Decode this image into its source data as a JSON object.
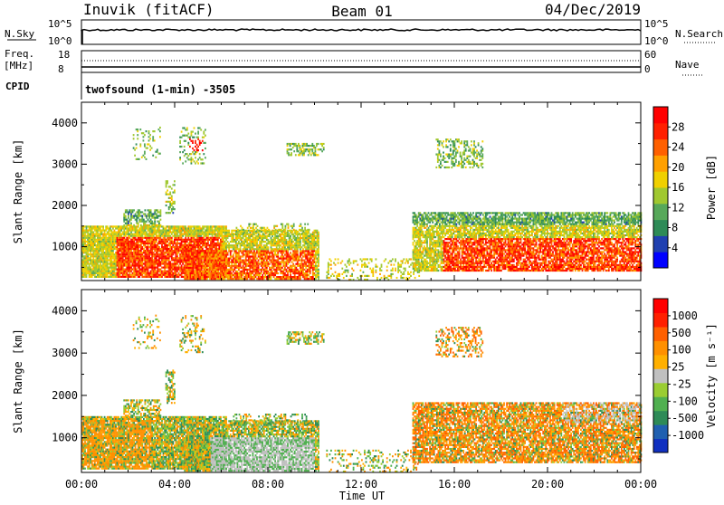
{
  "header": {
    "station": "Inuvik (fitACF)",
    "beam": "Beam 01",
    "date": "04/Dec/2019"
  },
  "top_panels": {
    "nsky_label": "N.Sky",
    "nsky_ticks": [
      "10^5",
      "10^0"
    ],
    "nsearch_label": "N.Search",
    "nsearch_ticks": [
      "10^5",
      "10^0"
    ],
    "freq_label_1": "Freq.",
    "freq_label_2": "[MHz]",
    "freq_ticks": [
      "18",
      "8"
    ],
    "nave_label": "Nave",
    "nave_ticks": [
      "60",
      "0"
    ],
    "cpid_label": "CPID",
    "cpid_text": "twofsound (1-min) -3505"
  },
  "chart_data": [
    {
      "type": "heatmap",
      "name": "power",
      "ylabel": "Slant Range [km]",
      "xlabel": "",
      "yticks": [
        "1000",
        "2000",
        "3000",
        "4000"
      ],
      "yvalues": [
        1000,
        2000,
        3000,
        4000
      ],
      "ylim": [
        180,
        4500
      ],
      "xlim": [
        0,
        24
      ],
      "colorbar": {
        "label": "Power [dB]",
        "ticks": [
          "4",
          "8",
          "12",
          "16",
          "20",
          "24",
          "28"
        ],
        "colors": [
          "#0000ff",
          "#2040b0",
          "#2e8b57",
          "#57a85a",
          "#a0c830",
          "#f0d000",
          "#ffa000",
          "#ff6000",
          "#ff2000",
          "#ff0000"
        ]
      }
    },
    {
      "type": "heatmap",
      "name": "velocity",
      "ylabel": "Slant Range [km]",
      "xlabel": "Time UT",
      "yticks": [
        "1000",
        "2000",
        "3000",
        "4000"
      ],
      "yvalues": [
        1000,
        2000,
        3000,
        4000
      ],
      "ylim": [
        180,
        4500
      ],
      "xlim": [
        0,
        24
      ],
      "xticks": [
        "00:00",
        "04:00",
        "08:00",
        "12:00",
        "16:00",
        "20:00",
        "00:00"
      ],
      "xvalues": [
        0,
        4,
        8,
        12,
        16,
        20,
        24
      ],
      "colorbar": {
        "label": "Velocity [m s⁻¹]",
        "ticks": [
          "1000",
          "500",
          "100",
          "25",
          "-25",
          "-100",
          "-500",
          "-1000"
        ],
        "colors": [
          "#1030c0",
          "#2060b0",
          "#2e8b57",
          "#50b050",
          "#9acd32",
          "#c0c0c0",
          "#ffb000",
          "#ff9000",
          "#ff6000",
          "#ff2000",
          "#ff0000"
        ]
      }
    }
  ],
  "colors": {
    "power_low": "#0000ff",
    "power_mid": "#2e8b57",
    "power_high": "#ff0000",
    "velocity_ground": "#c0c0c0",
    "velocity_neg": "#ff8c00",
    "velocity_pos": "#2e8b57"
  }
}
